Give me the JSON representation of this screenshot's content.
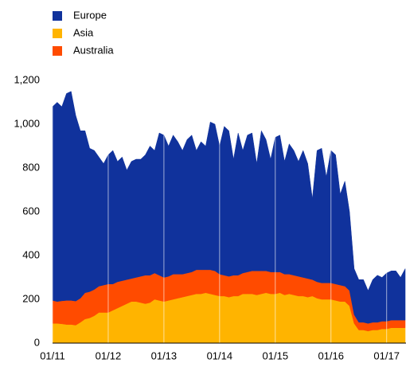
{
  "chart_data": {
    "type": "stacked_area",
    "categories": [
      "01/11",
      null,
      null,
      null,
      null,
      null,
      null,
      null,
      null,
      null,
      null,
      null,
      "01/12",
      null,
      null,
      null,
      null,
      null,
      null,
      null,
      null,
      null,
      null,
      null,
      "01/13",
      null,
      null,
      null,
      null,
      null,
      null,
      null,
      null,
      null,
      null,
      null,
      "01/14",
      null,
      null,
      null,
      null,
      null,
      null,
      null,
      null,
      null,
      null,
      null,
      "01/15",
      null,
      null,
      null,
      null,
      null,
      null,
      null,
      null,
      null,
      null,
      null,
      "01/16",
      null,
      null,
      null,
      null,
      null,
      null,
      null,
      null,
      null,
      null,
      null,
      "01/17",
      null,
      null,
      null,
      null
    ],
    "series": [
      {
        "name": "Asia",
        "color": "#ffb400",
        "values": [
          90,
          90,
          88,
          85,
          85,
          82,
          95,
          110,
          115,
          125,
          140,
          140,
          140,
          150,
          160,
          170,
          180,
          190,
          190,
          185,
          180,
          185,
          200,
          195,
          190,
          195,
          200,
          205,
          210,
          215,
          220,
          225,
          225,
          230,
          225,
          220,
          215,
          215,
          210,
          215,
          215,
          225,
          225,
          225,
          220,
          225,
          230,
          225,
          225,
          230,
          220,
          225,
          220,
          215,
          215,
          210,
          215,
          205,
          200,
          200,
          200,
          195,
          190,
          190,
          170,
          90,
          60,
          60,
          55,
          60,
          60,
          65,
          65,
          70,
          70,
          70,
          70
        ]
      },
      {
        "name": "Australia",
        "color": "#ff4b00",
        "values": [
          105,
          100,
          105,
          110,
          110,
          110,
          110,
          120,
          120,
          120,
          120,
          125,
          130,
          120,
          120,
          115,
          110,
          105,
          110,
          120,
          130,
          125,
          120,
          115,
          110,
          110,
          115,
          110,
          105,
          105,
          105,
          110,
          110,
          105,
          110,
          110,
          100,
          95,
          95,
          95,
          95,
          95,
          100,
          105,
          110,
          105,
          100,
          100,
          100,
          95,
          95,
          90,
          90,
          90,
          85,
          85,
          75,
          75,
          75,
          75,
          75,
          75,
          75,
          70,
          70,
          40,
          35,
          35,
          35,
          35,
          35,
          35,
          35,
          35,
          35,
          35,
          35
        ]
      },
      {
        "name": "Europe",
        "color": "#10329c",
        "values": [
          885,
          910,
          887,
          945,
          955,
          848,
          765,
          740,
          655,
          635,
          590,
          555,
          590,
          610,
          550,
          565,
          500,
          535,
          540,
          535,
          550,
          590,
          560,
          650,
          650,
          595,
          635,
          605,
          565,
          610,
          625,
          545,
          585,
          565,
          675,
          670,
          585,
          680,
          665,
          530,
          650,
          560,
          625,
          630,
          490,
          640,
          600,
          515,
          615,
          625,
          515,
          595,
          570,
          525,
          580,
          525,
          370,
          600,
          615,
          485,
          605,
          590,
          415,
          480,
          360,
          210,
          195,
          195,
          150,
          195,
          215,
          200,
          220,
          225,
          225,
          195,
          235
        ]
      }
    ],
    "legend_order": [
      "Europe",
      "Asia",
      "Australia"
    ],
    "ylim": [
      0,
      1200
    ],
    "yticks": [
      0,
      200,
      400,
      600,
      800,
      {
        "value": 1000,
        "label": "1,000"
      },
      {
        "value": 1200,
        "label": "1,200"
      }
    ],
    "grid": true
  }
}
